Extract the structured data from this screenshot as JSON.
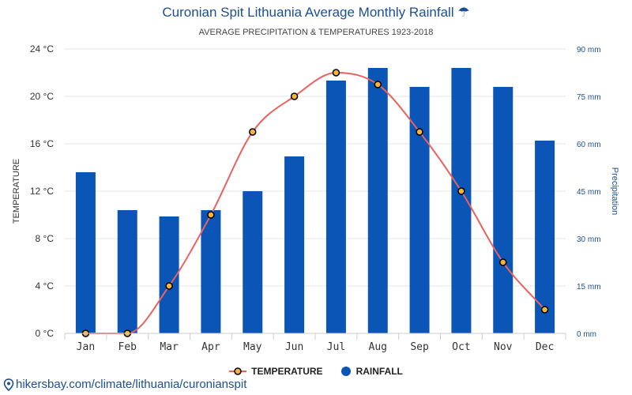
{
  "header": {
    "title": "Curonian Spit Lithuania Average Monthly Rainfall ☂",
    "subtitle": "AVERAGE PRECIPITATION & TEMPERATURES 1923-2018"
  },
  "legend": {
    "temperature_label": "TEMPERATURE",
    "rainfall_label": "RAINFALL"
  },
  "footer": {
    "link_text": "hikersbay.com/climate/lithuania/curonianspit",
    "pin_icon": "map-pin-icon"
  },
  "colors": {
    "bar": "#0a55b5",
    "line": "#e8625f",
    "marker_fill": "#f5b342",
    "left_axis_text": "#333333",
    "right_axis_text": "#1d4f91"
  },
  "chart_data": {
    "type": "bar",
    "categories": [
      "Jan",
      "Feb",
      "Mar",
      "Apr",
      "May",
      "Jun",
      "Jul",
      "Aug",
      "Sep",
      "Oct",
      "Nov",
      "Dec"
    ],
    "series": [
      {
        "name": "RAINFALL",
        "type": "bar",
        "axis": "right",
        "values": [
          51,
          39,
          37,
          39,
          45,
          56,
          80,
          84,
          78,
          84,
          78,
          61
        ]
      },
      {
        "name": "TEMPERATURE",
        "type": "line",
        "axis": "left",
        "values": [
          0,
          0,
          4,
          10,
          17,
          20,
          22,
          21,
          17,
          12,
          6,
          2
        ]
      }
    ],
    "y_left": {
      "label": "TEMPERATURE",
      "ticks": [
        "0 °C",
        "4 °C",
        "8 °C",
        "12 °C",
        "16 °C",
        "20 °C",
        "24 °C"
      ],
      "range": [
        0,
        24
      ]
    },
    "y_right": {
      "label": "Precipitation",
      "ticks": [
        "0 mm",
        "15 mm",
        "30 mm",
        "45 mm",
        "60 mm",
        "75 mm",
        "90 mm"
      ],
      "range": [
        0,
        90
      ]
    },
    "grid": true,
    "legend_position": "bottom-center"
  }
}
